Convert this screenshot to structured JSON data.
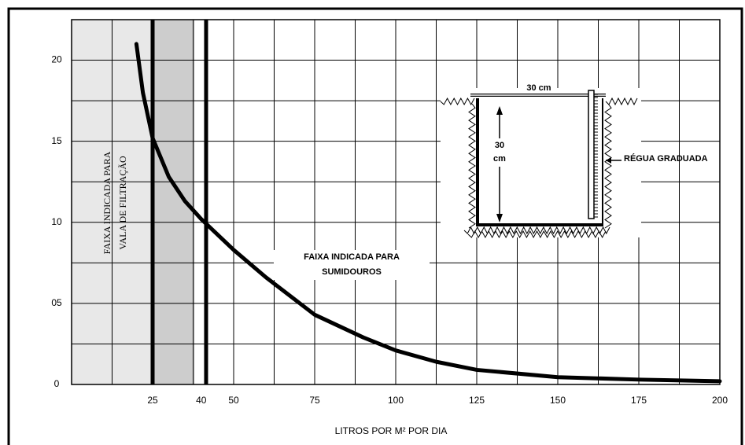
{
  "chart_data": {
    "type": "line",
    "x_label": "LITROS POR M² POR DIA",
    "series": [
      {
        "color": "#000000",
        "x": [
          20,
          22,
          25,
          30,
          35,
          40,
          50,
          60,
          75,
          90,
          100,
          112.5,
          125,
          150,
          175,
          200
        ],
        "values": [
          21,
          18,
          15.2,
          12.8,
          11.3,
          10.2,
          8.3,
          6.6,
          4.3,
          2.9,
          2.1,
          1.4,
          0.9,
          0.45,
          0.3,
          0.2
        ]
      }
    ],
    "xlim": [
      0,
      200
    ],
    "ylim": [
      0,
      22.5
    ],
    "xticks": [
      25,
      40,
      50,
      75,
      100,
      125,
      150,
      175,
      200
    ],
    "yticks": [
      0,
      {
        "value": 5,
        "label": "05"
      },
      10,
      15,
      20
    ],
    "xgrid": [
      0,
      12.5,
      25,
      37.5,
      50,
      62.5,
      75,
      87.5,
      100,
      112.5,
      125,
      137.5,
      150,
      162.5,
      175,
      187.5,
      200
    ],
    "ygrid": [
      0,
      2.5,
      5,
      7.5,
      10,
      12.5,
      15,
      17.5,
      20,
      22.5
    ],
    "shaded_regions": [
      {
        "from": 0,
        "to": 25,
        "color": "#e8e8e8"
      },
      {
        "from": 25,
        "to": 38,
        "color": "#cdcdcd"
      }
    ],
    "vlines": [
      25,
      41.5
    ],
    "annotations": {
      "filtration": [
        "FAIXA INDICADA PARA",
        "VALA DE FILTRAÇÃO"
      ],
      "sinks": [
        "FAIXA INDICADA PARA",
        "SUMIDOUROS"
      ]
    },
    "inset": {
      "width_label": "30 cm",
      "depth_label": [
        "30",
        "cm"
      ],
      "ruler_label": "RÉGUA GRADUADA"
    }
  }
}
